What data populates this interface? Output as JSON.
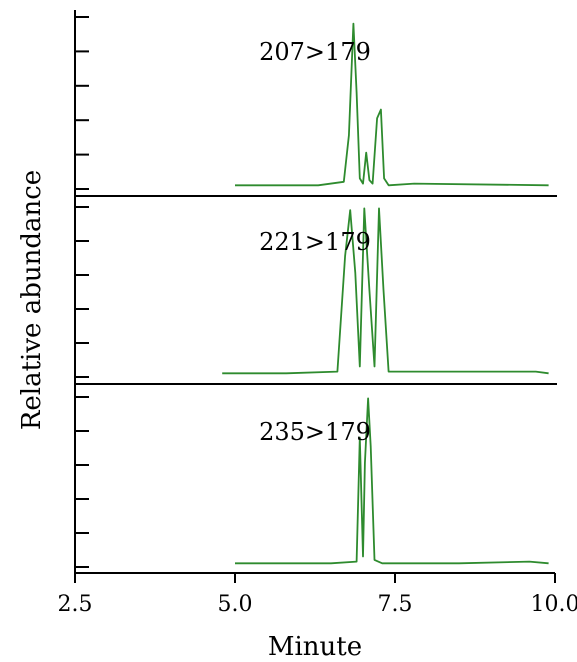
{
  "chart_data": {
    "type": "line",
    "xlabel": "Minute",
    "ylabel": "Relative abundance",
    "xlim": [
      2.5,
      10.0
    ],
    "xticks": [
      "2.5",
      "5.0",
      "7.5",
      "10.0"
    ],
    "grid": false,
    "line_color": "#2e8b2e",
    "series": [
      {
        "name": "207>179",
        "x": [
          5.0,
          6.0,
          6.3,
          6.7,
          6.78,
          6.85,
          6.9,
          6.95,
          7.0,
          7.05,
          7.1,
          7.15,
          7.22,
          7.28,
          7.33,
          7.4,
          7.8,
          9.9
        ],
        "y": [
          0.01,
          0.01,
          0.01,
          0.03,
          0.3,
          0.95,
          0.55,
          0.05,
          0.02,
          0.2,
          0.04,
          0.02,
          0.4,
          0.45,
          0.05,
          0.01,
          0.02,
          0.01
        ]
      },
      {
        "name": "221>179",
        "x": [
          4.8,
          5.8,
          6.6,
          6.72,
          6.8,
          6.88,
          6.95,
          7.02,
          7.1,
          7.18,
          7.25,
          7.32,
          7.4,
          9.7,
          9.9
        ],
        "y": [
          0.01,
          0.01,
          0.02,
          0.7,
          0.97,
          0.6,
          0.05,
          0.98,
          0.5,
          0.05,
          0.98,
          0.5,
          0.02,
          0.02,
          0.01
        ]
      },
      {
        "name": "235>179",
        "x": [
          5.0,
          5.8,
          6.2,
          6.5,
          6.9,
          6.95,
          7.0,
          7.03,
          7.08,
          7.12,
          7.18,
          7.3,
          8.5,
          9.6,
          9.9
        ],
        "y": [
          0.01,
          0.01,
          0.01,
          0.01,
          0.02,
          0.75,
          0.05,
          0.6,
          0.98,
          0.7,
          0.03,
          0.01,
          0.01,
          0.02,
          0.01
        ]
      }
    ]
  }
}
